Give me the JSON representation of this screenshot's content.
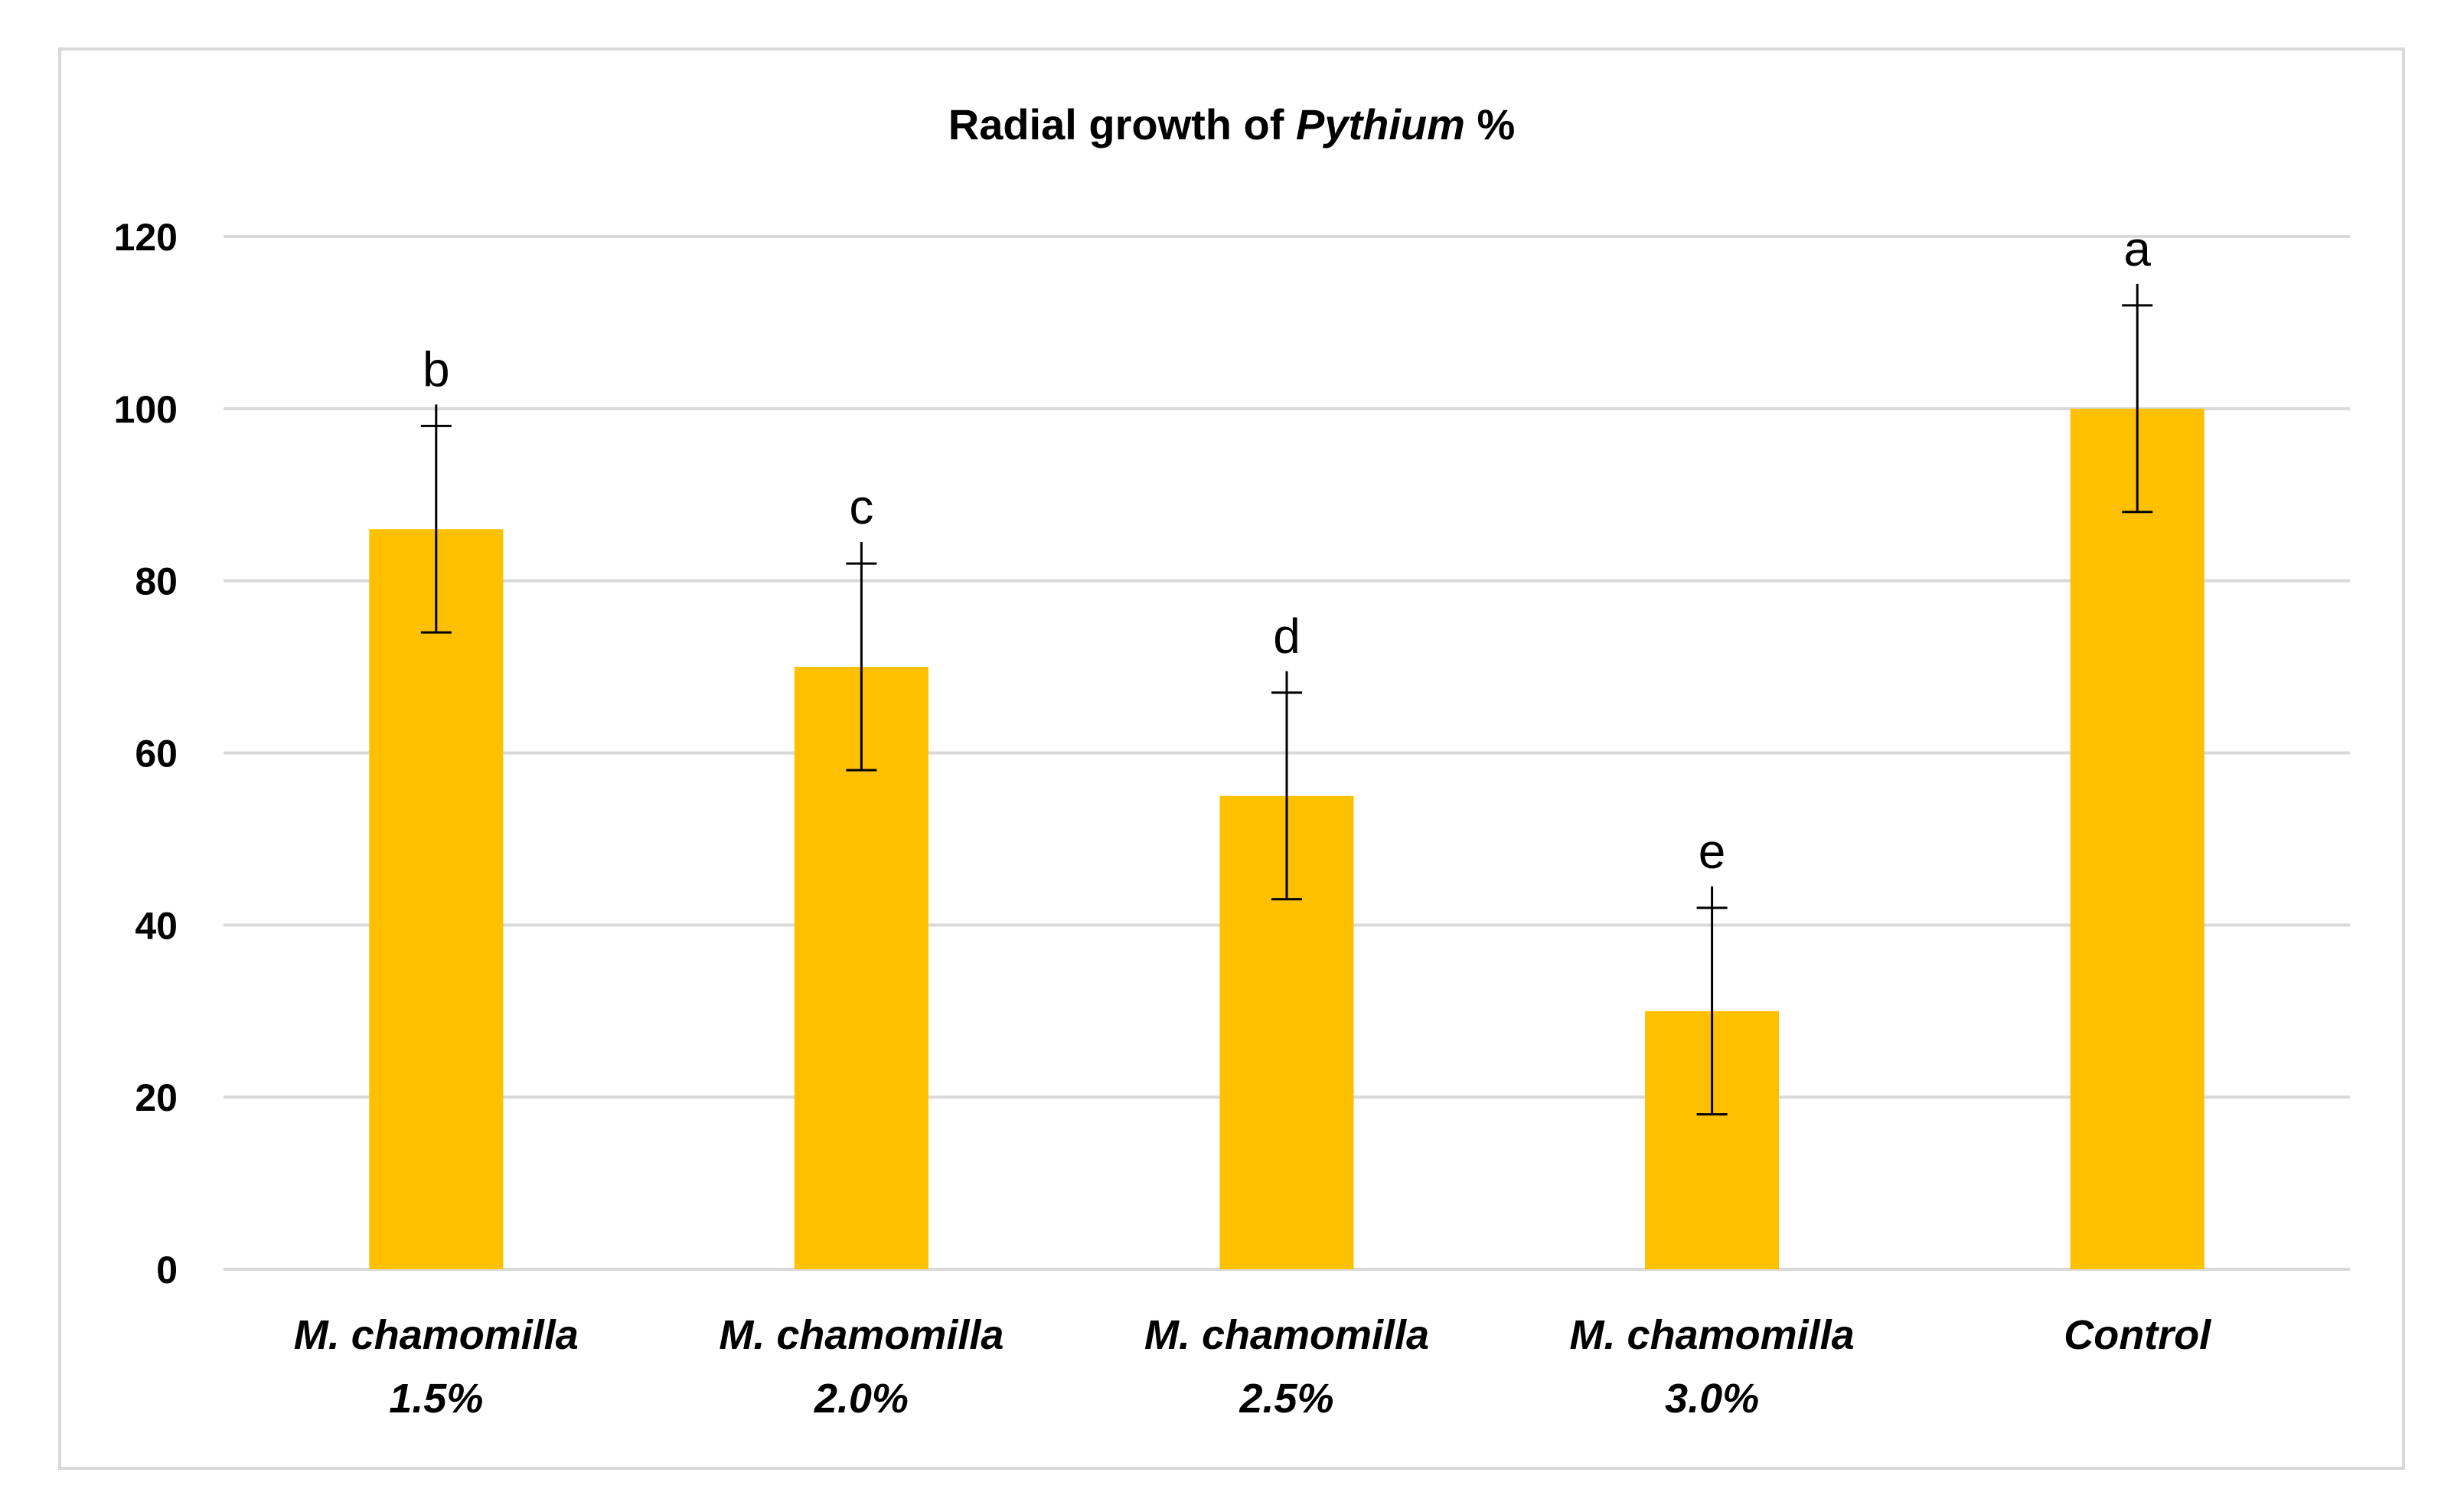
{
  "chart_data": {
    "type": "bar",
    "title": "Radial growth of Pythium %",
    "title_parts": {
      "before": "Radial growth of ",
      "italic": "Pythium",
      "after": " %"
    },
    "xlabel": "",
    "ylabel": "",
    "ylim": [
      0,
      120
    ],
    "yticks": [
      0,
      20,
      40,
      60,
      80,
      100,
      120
    ],
    "grid": true,
    "bar_color": "#FFC000",
    "gridline_color": "#D9D9D9",
    "categories": [
      {
        "line1": "M. chamomilla",
        "line2": "1.5%"
      },
      {
        "line1": "M. chamomilla",
        "line2": "2.0%"
      },
      {
        "line1": "M. chamomilla",
        "line2": "2.5%"
      },
      {
        "line1": "M. chamomilla",
        "line2": "3.0%"
      },
      {
        "line1": "Control",
        "line2": ""
      }
    ],
    "values": [
      86,
      70,
      55,
      30,
      100
    ],
    "error": [
      12,
      12,
      12,
      12,
      12
    ],
    "significance_letters": [
      "b",
      "c",
      "d",
      "e",
      "a"
    ]
  }
}
